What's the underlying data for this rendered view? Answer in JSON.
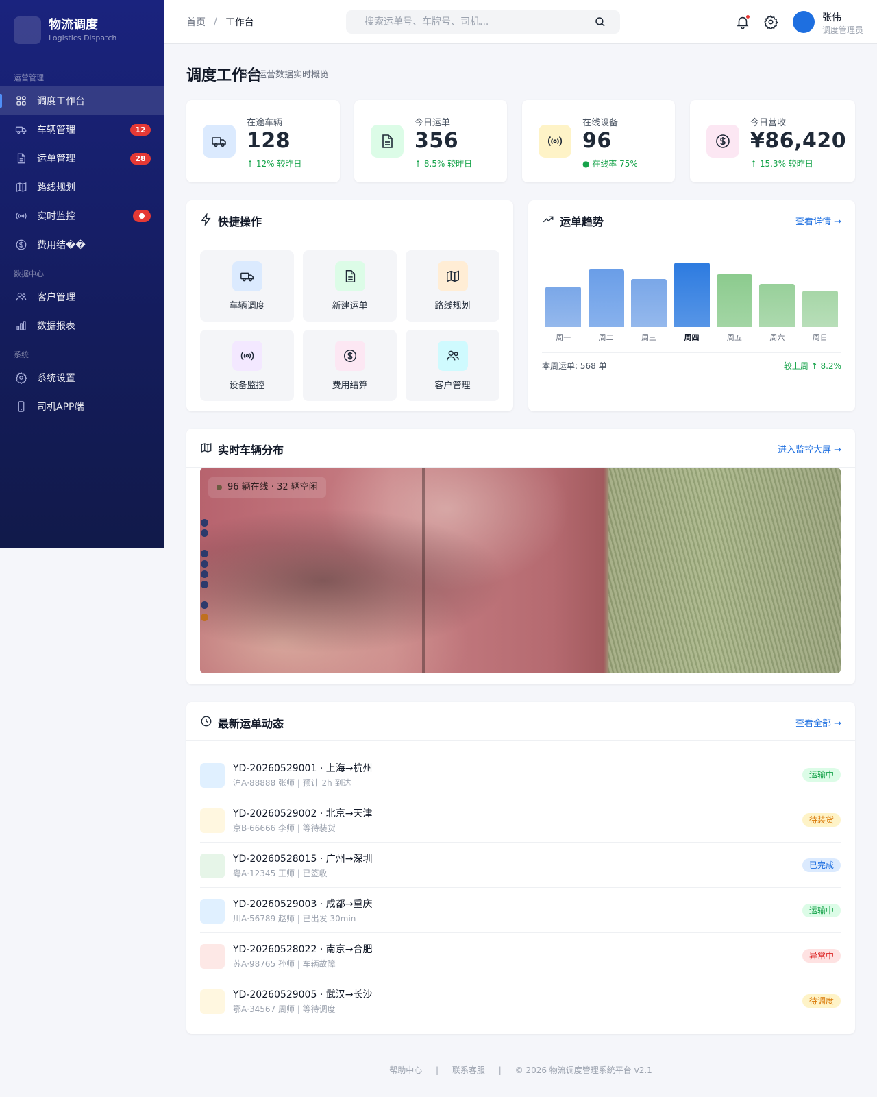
{
  "brand": {
    "logo_glyph": "",
    "title": "物流调度",
    "subtitle": "Logistics Dispatch"
  },
  "sidebar": {
    "sections": [
      "运营管理",
      "数据中心",
      "系统"
    ],
    "items": [
      {
        "label": "调度工作台",
        "icon": "grid-icon",
        "active": true
      },
      {
        "label": "车辆管理",
        "icon": "truck-icon",
        "badge": "12"
      },
      {
        "label": "运单管理",
        "icon": "document-icon",
        "badge": "28"
      },
      {
        "label": "路线规划",
        "icon": "map-icon"
      },
      {
        "label": "实时监控",
        "icon": "broadcast-icon",
        "badge_dot": true
      },
      {
        "label": "费用结��",
        "icon": "dollar-icon"
      },
      {
        "label": "客户管理",
        "icon": "users-icon"
      },
      {
        "label": "数据报表",
        "icon": "bar-chart-icon"
      },
      {
        "label": "系统设置",
        "icon": "gear-icon"
      },
      {
        "label": "司机APP端",
        "icon": "phone-icon"
      }
    ]
  },
  "header": {
    "breadcrumb": [
      "首页",
      "工作台"
    ],
    "search_placeholder": "搜索运单号、车牌号、司机...",
    "avatar_glyph": "",
    "user_name": "张伟",
    "user_role": "调度管理员",
    "has_notification": true
  },
  "page": {
    "title": "调度工作台",
    "subtitle": "今日运营数据实时概览"
  },
  "stats": [
    {
      "label": "在途车辆",
      "value": "128",
      "trend": "↑ 12% 较昨日",
      "icon": "truck-icon",
      "color": "#dbeafe"
    },
    {
      "label": "今日运单",
      "value": "356",
      "trend": "↑ 8.5% 较昨日",
      "icon": "document-icon",
      "color": "#dcfce7"
    },
    {
      "label": "在线设备",
      "value": "96",
      "trend": "● 在线率 75%",
      "icon": "broadcast-icon",
      "color": "#fef3c7"
    },
    {
      "label": "今日营收",
      "value": "¥86,420",
      "trend": "↑ 15.3% 较昨日",
      "icon": "dollar-icon",
      "color": "#fce7f3"
    }
  ],
  "quick_actions": {
    "title": "快捷操作",
    "items": [
      {
        "label": "车辆调度",
        "icon": "truck-icon",
        "color": "#dbeafe"
      },
      {
        "label": "新建运单",
        "icon": "document-icon",
        "color": "#dcfce7"
      },
      {
        "label": "路线规划",
        "icon": "map-icon",
        "color": "#ffedd5"
      },
      {
        "label": "设备监控",
        "icon": "broadcast-icon",
        "color": "#f3e8ff"
      },
      {
        "label": "费用结算",
        "icon": "dollar-icon",
        "color": "#fce7f3"
      },
      {
        "label": "客户管理",
        "icon": "users-icon",
        "color": "#cffafe"
      }
    ]
  },
  "weekly": {
    "title": "运单趋势",
    "link": "查看详情 →",
    "footer_left": "本周运单: 568 单",
    "footer_right": "较上周 ↑ 8.2%"
  },
  "chart_data": {
    "type": "bar",
    "categories": [
      "周一",
      "周二",
      "周三",
      "周四",
      "周五",
      "周六",
      "周日"
    ],
    "values": [
      58,
      82,
      69,
      92,
      75,
      62,
      52
    ],
    "highlight_index": 3,
    "colors": [
      "#7aa7e8",
      "#6a9ee8",
      "#7aa7e8",
      "#2d7be0",
      "#8ccb8e",
      "#98d09a",
      "#a6d6a7"
    ]
  },
  "map": {
    "title": "实时车辆分布",
    "link": "进入监控大屏 →",
    "overlay_text": "96 辆在线 · 32 辆空闲"
  },
  "orders": {
    "title": "最新运单动态",
    "link": "查看全部 →",
    "items": [
      {
        "glyph": "",
        "title": "YD-20260529001 · 上海→杭州",
        "meta": "沪A·88888 张师 | 预计 2h 到达",
        "status": "运输中",
        "status_color": "#16a34a",
        "status_bg": "#dcfce7",
        "icon_bg": "#e0f0ff"
      },
      {
        "glyph": "",
        "title": "YD-20260529002 · 北京→天津",
        "meta": "京B·66666 李师 | 等待装货",
        "status": "待装货",
        "status_color": "#d97706",
        "status_bg": "#fef3c7",
        "icon_bg": "#fff7e0"
      },
      {
        "glyph": "",
        "title": "YD-20260528015 · 广州→深圳",
        "meta": "粤A·12345 王师 | 已签收",
        "status": "已完成",
        "status_color": "#1e6fe0",
        "status_bg": "#dbeafe",
        "icon_bg": "#e6f5e8"
      },
      {
        "glyph": "",
        "title": "YD-20260529003 · 成都→重庆",
        "meta": "川A·56789 赵师 | 已出发 30min",
        "status": "运输中",
        "status_color": "#16a34a",
        "status_bg": "#dcfce7",
        "icon_bg": "#e0f0ff"
      },
      {
        "glyph": "",
        "title": "YD-20260528022 · 南京→合肥",
        "meta": "苏A·98765 孙师 | 车辆故障",
        "status": "异常中",
        "status_color": "#dc2626",
        "status_bg": "#fee2e2",
        "icon_bg": "#fde8e6"
      },
      {
        "glyph": "",
        "title": "YD-20260529005 · 武汉→长沙",
        "meta": "鄂A·34567 周师 | 等待调度",
        "status": "待调度",
        "status_color": "#d97706",
        "status_bg": "#fef3c7",
        "icon_bg": "#fff7e0"
      }
    ]
  },
  "footer": {
    "links": [
      "帮助中心",
      "联系客服"
    ],
    "copyright": "© 2026 物流调度管理系统平台 v2.1"
  }
}
